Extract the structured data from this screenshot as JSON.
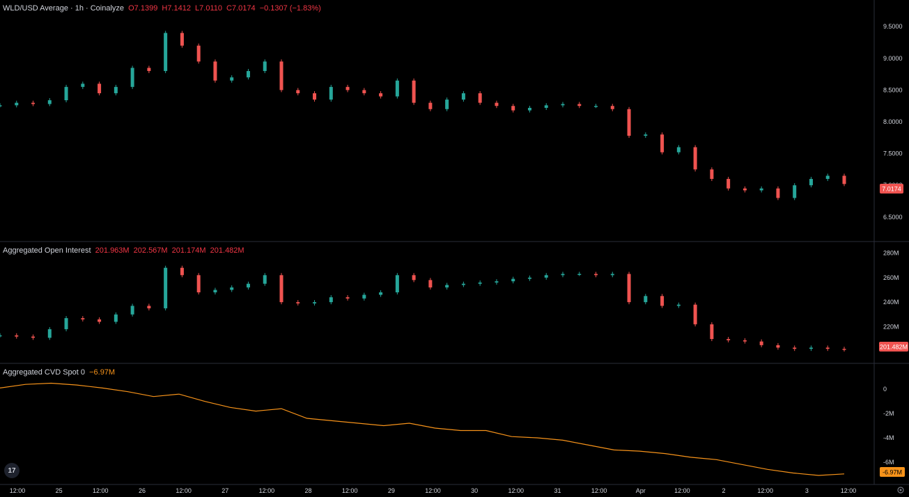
{
  "price_pane": {
    "title": "WLD/USD Average · 1h · Coinalyze",
    "ohlc": {
      "o": "O7.1399",
      "h": "H7.1412",
      "l": "L7.0110",
      "c": "C7.0174",
      "chg": "−0.1307 (−1.83%)"
    },
    "last_label": "7.0174"
  },
  "oi_pane": {
    "title": "Aggregated Open Interest",
    "values": [
      "201.963M",
      "202.567M",
      "201.174M",
      "201.482M"
    ],
    "last_label": "201.482M"
  },
  "cvd_pane": {
    "title": "Aggregated CVD Spot 0",
    "value": "−6.97M",
    "last_label": "-6.97M"
  },
  "colors": {
    "up": "#26a69a",
    "down": "#ef5350",
    "cvd": "#f7931a",
    "bg": "#000000",
    "grid": "#2a2e39"
  },
  "chart_data": [
    {
      "type": "line",
      "title": "WLD/USD Average · 1h · Coinalyze",
      "x": [
        0,
        4,
        8,
        12,
        16,
        20,
        24,
        28,
        32,
        36,
        40,
        44,
        48,
        52,
        56,
        60,
        64,
        68,
        72,
        76,
        80,
        84,
        88,
        92,
        96,
        100,
        104,
        108,
        112,
        116,
        120,
        124,
        128,
        132,
        136,
        140,
        144,
        148,
        152,
        156,
        160,
        164,
        168,
        172,
        176,
        180,
        184,
        188,
        192,
        196,
        200,
        204
      ],
      "series": [
        {
          "name": "WLD/USD",
          "values": [
            8.26,
            8.3,
            8.28,
            8.34,
            8.55,
            8.6,
            8.45,
            8.55,
            8.85,
            8.8,
            9.4,
            9.2,
            8.95,
            8.65,
            8.7,
            8.8,
            8.95,
            8.5,
            8.45,
            8.35,
            8.55,
            8.5,
            8.45,
            8.4,
            8.65,
            8.3,
            8.2,
            8.35,
            8.45,
            8.3,
            8.25,
            8.18,
            8.22,
            8.26,
            8.28,
            8.25,
            8.25,
            8.2,
            7.78,
            7.8,
            7.52,
            7.6,
            7.25,
            7.1,
            6.95,
            6.92,
            6.95,
            6.8,
            7.0,
            7.1,
            7.15,
            7.02
          ]
        }
      ],
      "ylim": [
        6.3,
        9.7
      ],
      "y_ticks": [
        "9.5000",
        "9.0000",
        "8.5000",
        "8.0000",
        "7.5000",
        "7.0000",
        "6.5000"
      ]
    },
    {
      "type": "line",
      "title": "Aggregated Open Interest",
      "series": [
        {
          "name": "Aggregated Open Interest",
          "values": [
            213,
            212,
            211,
            218,
            227,
            226,
            224,
            230,
            237,
            235,
            268,
            262,
            248,
            250,
            252,
            255,
            262,
            240,
            239,
            240,
            244,
            243,
            246,
            248,
            262,
            258,
            252,
            254,
            255,
            256,
            257,
            259,
            260,
            262,
            263,
            263,
            262,
            263,
            240,
            245,
            237,
            238,
            222,
            210,
            209,
            208,
            205,
            203,
            202,
            203,
            202,
            201.5
          ]
        }
      ],
      "ylim": [
        197,
        282
      ],
      "y_ticks": [
        "280M",
        "260M",
        "240M",
        "220M"
      ]
    },
    {
      "type": "line",
      "title": "Aggregated CVD Spot 0",
      "series": [
        {
          "name": "Aggregated CVD Spot 0",
          "values": [
            0.1,
            0.4,
            0.5,
            0.35,
            0.1,
            -0.2,
            -0.6,
            -0.4,
            -1.0,
            -1.5,
            -1.8,
            -1.6,
            -2.4,
            -2.6,
            -2.8,
            -3.0,
            -2.8,
            -3.2,
            -3.4,
            -3.4,
            -3.9,
            -4.0,
            -4.2,
            -4.6,
            -5.0,
            -5.1,
            -5.3,
            -5.6,
            -5.8,
            -6.2,
            -6.6,
            -6.9,
            -7.1,
            -6.97
          ]
        }
      ],
      "ylim": [
        -7.5,
        1.1
      ],
      "y_ticks": [
        "0",
        "-2M",
        "-4M",
        "-6M"
      ]
    }
  ],
  "x_axis_ticks": [
    "12:00",
    "25",
    "12:00",
    "26",
    "12:00",
    "27",
    "12:00",
    "28",
    "12:00",
    "29",
    "12:00",
    "30",
    "12:00",
    "31",
    "12:00",
    "Apr",
    "12:00",
    "2",
    "12:00",
    "3",
    "12:00"
  ]
}
